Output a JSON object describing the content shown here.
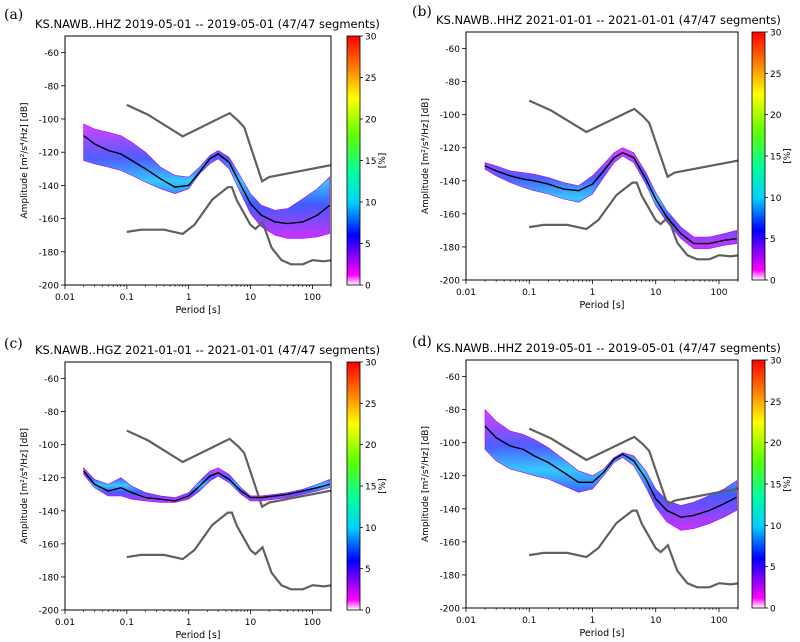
{
  "figure": {
    "colors": {
      "nlnm_nhnm": "#606060",
      "mean_curve": "#000000",
      "frame": "#000000"
    }
  },
  "panels": [
    {
      "letter": "(a)"
    },
    {
      "letter": "(b)"
    },
    {
      "letter": "(c)"
    },
    {
      "letter": "(d)"
    }
  ],
  "chart_data": [
    {
      "type": "heatmap",
      "title": "KS.NAWB..HHZ   2019-05-01 -- 2019-05-01   (47/47 segments)",
      "xlabel": "Period [s]",
      "ylabel": "Amplitude [m²/s⁴/Hz] [dB]",
      "xscale": "log",
      "xlim": [
        0.01,
        200
      ],
      "ylim": [
        -200,
        -50
      ],
      "xticks": [
        0.01,
        0.1,
        1,
        10,
        100
      ],
      "xtick_labels": [
        "0.01",
        "0.1",
        "1",
        "10",
        "100"
      ],
      "yticks": [
        -200,
        -180,
        -160,
        -140,
        -120,
        -100,
        -80,
        -60
      ],
      "ytick_labels": [
        "-200",
        "-180",
        "-160",
        "-140",
        "-120",
        "-100",
        "-80",
        "-60"
      ],
      "colorbar": {
        "label": "[%]",
        "range": [
          0,
          30
        ],
        "ticks": [
          0,
          5,
          10,
          15,
          20,
          25,
          30
        ],
        "tick_labels": [
          "0",
          "5",
          "10",
          "15",
          "20",
          "25",
          "30"
        ],
        "colormap": "pqlx"
      },
      "band": {
        "x": [
          0.02,
          0.03,
          0.05,
          0.08,
          0.12,
          0.2,
          0.35,
          0.6,
          1,
          1.5,
          2.2,
          3,
          4.5,
          7,
          10,
          15,
          25,
          40,
          70,
          120,
          190
        ],
        "lower": [
          -125,
          -127,
          -129,
          -131,
          -134,
          -138,
          -142,
          -145,
          -142,
          -133,
          -127,
          -124,
          -130,
          -145,
          -157,
          -165,
          -170,
          -172,
          -172,
          -171,
          -169
        ],
        "upper": [
          -103,
          -106,
          -108,
          -110,
          -114,
          -120,
          -129,
          -134,
          -135,
          -129,
          -122,
          -119,
          -123,
          -135,
          -145,
          -152,
          -155,
          -154,
          -148,
          -142,
          -135
        ]
      },
      "mean_curve": {
        "x": [
          0.02,
          0.03,
          0.05,
          0.08,
          0.12,
          0.2,
          0.35,
          0.6,
          1,
          1.5,
          2.2,
          3,
          4.5,
          7,
          10,
          15,
          25,
          40,
          70,
          120,
          190
        ],
        "y": [
          -110,
          -115,
          -119,
          -121,
          -125,
          -130,
          -136,
          -141,
          -140,
          -132,
          -124,
          -121,
          -126,
          -140,
          -151,
          -158,
          -162,
          -163,
          -162,
          -158,
          -152
        ]
      },
      "nhnm": {
        "x": [
          0.1,
          0.22,
          0.8,
          3.8,
          4.6,
          6.3,
          7.9,
          15.4,
          20,
          354.8
        ],
        "y": [
          -91.5,
          -97.4,
          -110.5,
          -98,
          -96.5,
          -101,
          -105,
          -137.5,
          -135,
          -126
        ]
      },
      "nlnm": {
        "x": [
          0.1,
          0.17,
          0.4,
          0.8,
          1.24,
          2.4,
          4.3,
          5.0,
          6.0,
          10,
          12,
          15.6,
          21.9,
          31.6,
          45,
          70,
          101,
          154,
          328
        ],
        "y": [
          -168,
          -166.7,
          -166.7,
          -169.2,
          -163.7,
          -148.6,
          -141.1,
          -141.1,
          -149,
          -163.8,
          -166.2,
          -162.1,
          -177.5,
          -185,
          -187.5,
          -187.5,
          -185,
          -185.7,
          -184
        ]
      }
    },
    {
      "type": "heatmap",
      "title": "KS.NAWB..HHZ   2021-01-01 -- 2021-01-01   (47/47 segments)",
      "xlabel": "Period [s]",
      "ylabel": "Amplitude [m²/s⁴/Hz] [dB]",
      "xscale": "log",
      "xlim": [
        0.01,
        200
      ],
      "ylim": [
        -200,
        -50
      ],
      "xticks": [
        0.01,
        0.1,
        1,
        10,
        100
      ],
      "xtick_labels": [
        "0.01",
        "0.1",
        "1",
        "10",
        "100"
      ],
      "yticks": [
        -200,
        -180,
        -160,
        -140,
        -120,
        -100,
        -80,
        -60
      ],
      "ytick_labels": [
        "-200",
        "-180",
        "-160",
        "-140",
        "-120",
        "-100",
        "-80",
        "-60"
      ],
      "colorbar": {
        "label": "[%]",
        "range": [
          0,
          30
        ],
        "ticks": [
          0,
          5,
          10,
          15,
          20,
          25,
          30
        ],
        "tick_labels": [
          "0",
          "5",
          "10",
          "15",
          "20",
          "25",
          "30"
        ],
        "colormap": "pqlx"
      },
      "band": {
        "x": [
          0.02,
          0.03,
          0.05,
          0.08,
          0.12,
          0.2,
          0.35,
          0.6,
          1,
          1.5,
          2.2,
          3,
          4.5,
          7,
          10,
          15,
          25,
          40,
          70,
          120,
          190
        ],
        "lower": [
          -133,
          -137,
          -141,
          -144,
          -146,
          -148,
          -151,
          -153,
          -148,
          -138,
          -129,
          -125,
          -129,
          -142,
          -155,
          -165,
          -175,
          -181,
          -181,
          -179,
          -178
        ],
        "upper": [
          -129,
          -131,
          -134,
          -135,
          -136,
          -138,
          -141,
          -143,
          -137,
          -130,
          -123,
          -120,
          -123,
          -135,
          -147,
          -158,
          -168,
          -174,
          -174,
          -172,
          -170
        ]
      },
      "mean_curve": {
        "x": [
          0.02,
          0.03,
          0.05,
          0.08,
          0.12,
          0.2,
          0.35,
          0.6,
          1,
          1.5,
          2.2,
          3,
          4.5,
          7,
          10,
          15,
          25,
          40,
          70,
          120,
          190
        ],
        "y": [
          -131,
          -134,
          -137,
          -139,
          -140,
          -142,
          -145,
          -146,
          -142,
          -134,
          -126,
          -123,
          -126,
          -139,
          -151,
          -162,
          -172,
          -178,
          -178,
          -176,
          -175
        ]
      },
      "nhnm": {
        "x": [
          0.1,
          0.22,
          0.8,
          3.8,
          4.6,
          6.3,
          7.9,
          15.4,
          20,
          354.8
        ],
        "y": [
          -91.5,
          -97.4,
          -110.5,
          -98,
          -96.5,
          -101,
          -105,
          -137.5,
          -135,
          -126
        ]
      },
      "nlnm": {
        "x": [
          0.1,
          0.17,
          0.4,
          0.8,
          1.24,
          2.4,
          4.3,
          5.0,
          6.0,
          10,
          12,
          15.6,
          21.9,
          31.6,
          45,
          70,
          101,
          154,
          328
        ],
        "y": [
          -168,
          -166.7,
          -166.7,
          -169.2,
          -163.7,
          -148.6,
          -141.1,
          -141.1,
          -149,
          -163.8,
          -166.2,
          -162.1,
          -177.5,
          -185,
          -187.5,
          -187.5,
          -185,
          -185.7,
          -184
        ]
      }
    },
    {
      "type": "heatmap",
      "title": "KS.NAWB..HGZ   2021-01-01 -- 2021-01-01   (47/47 segments)",
      "xlabel": "Period [s]",
      "ylabel": "Amplitude [m²/s⁴/Hz] [dB]",
      "xscale": "log",
      "xlim": [
        0.01,
        200
      ],
      "ylim": [
        -200,
        -50
      ],
      "xticks": [
        0.01,
        0.1,
        1,
        10,
        100
      ],
      "xtick_labels": [
        "0.01",
        "0.1",
        "1",
        "10",
        "100"
      ],
      "yticks": [
        -200,
        -180,
        -160,
        -140,
        -120,
        -100,
        -80,
        -60
      ],
      "ytick_labels": [
        "-200",
        "-180",
        "-160",
        "-140",
        "-120",
        "-100",
        "-80",
        "-60"
      ],
      "colorbar": {
        "label": "[%]",
        "range": [
          0,
          30
        ],
        "ticks": [
          0,
          5,
          10,
          15,
          20,
          25,
          30
        ],
        "tick_labels": [
          "0",
          "5",
          "10",
          "15",
          "20",
          "25",
          "30"
        ],
        "colormap": "pqlx"
      },
      "band": {
        "x": [
          0.02,
          0.03,
          0.05,
          0.08,
          0.12,
          0.2,
          0.35,
          0.6,
          1,
          1.5,
          2.2,
          3,
          4.5,
          7,
          10,
          15,
          25,
          40,
          70,
          120,
          190
        ],
        "lower": [
          -118,
          -126,
          -131,
          -131,
          -133,
          -134,
          -135,
          -135,
          -133,
          -128,
          -122,
          -119,
          -123,
          -130,
          -134,
          -134,
          -133,
          -132,
          -130,
          -128,
          -126
        ],
        "upper": [
          -114,
          -121,
          -124,
          -120,
          -125,
          -129,
          -131,
          -132,
          -129,
          -122,
          -116,
          -114,
          -118,
          -126,
          -131,
          -131,
          -130,
          -129,
          -127,
          -124,
          -121
        ]
      },
      "mean_curve": {
        "x": [
          0.02,
          0.03,
          0.05,
          0.08,
          0.12,
          0.2,
          0.35,
          0.6,
          1,
          1.5,
          2.2,
          3,
          4.5,
          7,
          10,
          15,
          25,
          40,
          70,
          120,
          190
        ],
        "y": [
          -116,
          -124,
          -128,
          -126,
          -129,
          -132,
          -133,
          -134,
          -131,
          -125,
          -119,
          -117,
          -121,
          -128,
          -132,
          -132,
          -131,
          -130,
          -128,
          -126,
          -124
        ]
      },
      "nhnm": {
        "x": [
          0.1,
          0.22,
          0.8,
          3.8,
          4.6,
          6.3,
          7.9,
          15.4,
          20,
          354.8
        ],
        "y": [
          -91.5,
          -97.4,
          -110.5,
          -98,
          -96.5,
          -101,
          -105,
          -137.5,
          -135,
          -126
        ]
      },
      "nlnm": {
        "x": [
          0.1,
          0.17,
          0.4,
          0.8,
          1.24,
          2.4,
          4.3,
          5.0,
          6.0,
          10,
          12,
          15.6,
          21.9,
          31.6,
          45,
          70,
          101,
          154,
          328
        ],
        "y": [
          -168,
          -166.7,
          -166.7,
          -169.2,
          -163.7,
          -148.6,
          -141.1,
          -141.1,
          -149,
          -163.8,
          -166.2,
          -162.1,
          -177.5,
          -185,
          -187.5,
          -187.5,
          -185,
          -185.7,
          -184
        ]
      }
    },
    {
      "type": "heatmap",
      "title": "KS.NAWB..HHZ   2019-05-01 -- 2019-05-01   (47/47 segments)",
      "xlabel": "Period [s]",
      "ylabel": "Amplitude [m²/s⁴/Hz] [dB]",
      "xscale": "log",
      "xlim": [
        0.01,
        200
      ],
      "ylim": [
        -200,
        -50
      ],
      "xticks": [
        0.01,
        0.1,
        1,
        10,
        100
      ],
      "xtick_labels": [
        "0.01",
        "0.1",
        "1",
        "10",
        "100"
      ],
      "yticks": [
        -200,
        -180,
        -160,
        -140,
        -120,
        -100,
        -80,
        -60
      ],
      "ytick_labels": [
        "-200",
        "-180",
        "-160",
        "-140",
        "-120",
        "-100",
        "-80",
        "-60"
      ],
      "colorbar": {
        "label": "[%]",
        "range": [
          0,
          30
        ],
        "ticks": [
          0,
          5,
          10,
          15,
          20,
          25,
          30
        ],
        "tick_labels": [
          "0",
          "5",
          "10",
          "15",
          "20",
          "25",
          "30"
        ],
        "colormap": "pqlx"
      },
      "band": {
        "x": [
          0.02,
          0.03,
          0.05,
          0.08,
          0.12,
          0.2,
          0.35,
          0.6,
          1,
          1.5,
          2.2,
          3,
          4.5,
          7,
          10,
          15,
          25,
          40,
          70,
          120,
          190
        ],
        "lower": [
          -104,
          -111,
          -116,
          -118,
          -120,
          -122,
          -126,
          -130,
          -128,
          -120,
          -112,
          -109,
          -114,
          -127,
          -139,
          -148,
          -153,
          -152,
          -149,
          -145,
          -141
        ],
        "upper": [
          -80,
          -87,
          -93,
          -95,
          -98,
          -103,
          -110,
          -117,
          -120,
          -116,
          -109,
          -106,
          -108,
          -117,
          -128,
          -135,
          -138,
          -136,
          -132,
          -128,
          -123
        ]
      },
      "mean_curve": {
        "x": [
          0.02,
          0.03,
          0.05,
          0.08,
          0.12,
          0.2,
          0.35,
          0.6,
          1,
          1.5,
          2.2,
          3,
          4.5,
          7,
          10,
          15,
          25,
          40,
          70,
          120,
          190
        ],
        "y": [
          -90,
          -97,
          -102,
          -104,
          -108,
          -112,
          -118,
          -124,
          -124,
          -118,
          -110,
          -107,
          -111,
          -122,
          -134,
          -141,
          -145,
          -144,
          -141,
          -137,
          -133
        ]
      },
      "nhnm": {
        "x": [
          0.1,
          0.22,
          0.8,
          3.8,
          4.6,
          6.3,
          7.9,
          15.4,
          20,
          354.8
        ],
        "y": [
          -91.5,
          -97.4,
          -110.5,
          -98,
          -96.5,
          -101,
          -105,
          -137.5,
          -135,
          -126
        ]
      },
      "nlnm": {
        "x": [
          0.1,
          0.17,
          0.4,
          0.8,
          1.24,
          2.4,
          4.3,
          5.0,
          6.0,
          10,
          12,
          15.6,
          21.9,
          31.6,
          45,
          70,
          101,
          154,
          328
        ],
        "y": [
          -168,
          -166.7,
          -166.7,
          -169.2,
          -163.7,
          -148.6,
          -141.1,
          -141.1,
          -149,
          -163.8,
          -166.2,
          -162.1,
          -177.5,
          -185,
          -187.5,
          -187.5,
          -185,
          -185.7,
          -184
        ]
      }
    }
  ]
}
